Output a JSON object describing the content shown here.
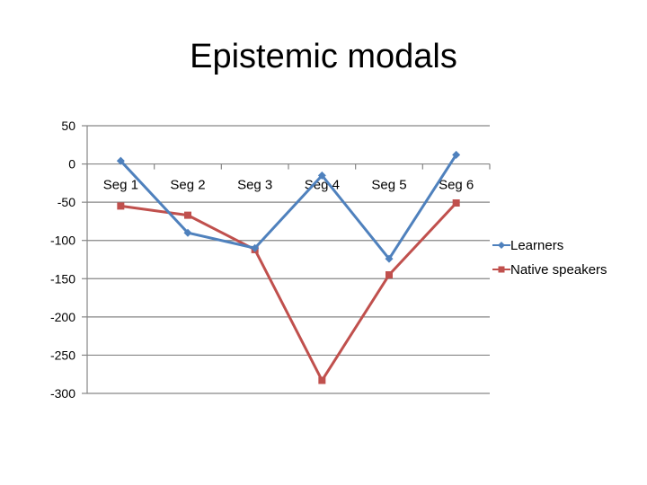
{
  "chart_data": {
    "type": "line",
    "title": "Epistemic modals",
    "xlabel": "",
    "ylabel": "",
    "categories": [
      "Seg 1",
      "Seg 2",
      "Seg 3",
      "Seg 4",
      "Seg 5",
      "Seg 6"
    ],
    "ylim": [
      -300,
      50
    ],
    "yticks": [
      50,
      0,
      -50,
      -100,
      -150,
      -200,
      -250,
      -300
    ],
    "grid": true,
    "legend_position": "right",
    "series": [
      {
        "name": "Learners",
        "values": [
          4,
          -90,
          -110,
          -15,
          -124,
          12
        ],
        "color": "#4F81BD",
        "marker": "diamond"
      },
      {
        "name": "Native speakers",
        "values": [
          -55,
          -67,
          -112,
          -283,
          -145,
          -51
        ],
        "color": "#C0504D",
        "marker": "square"
      }
    ]
  }
}
